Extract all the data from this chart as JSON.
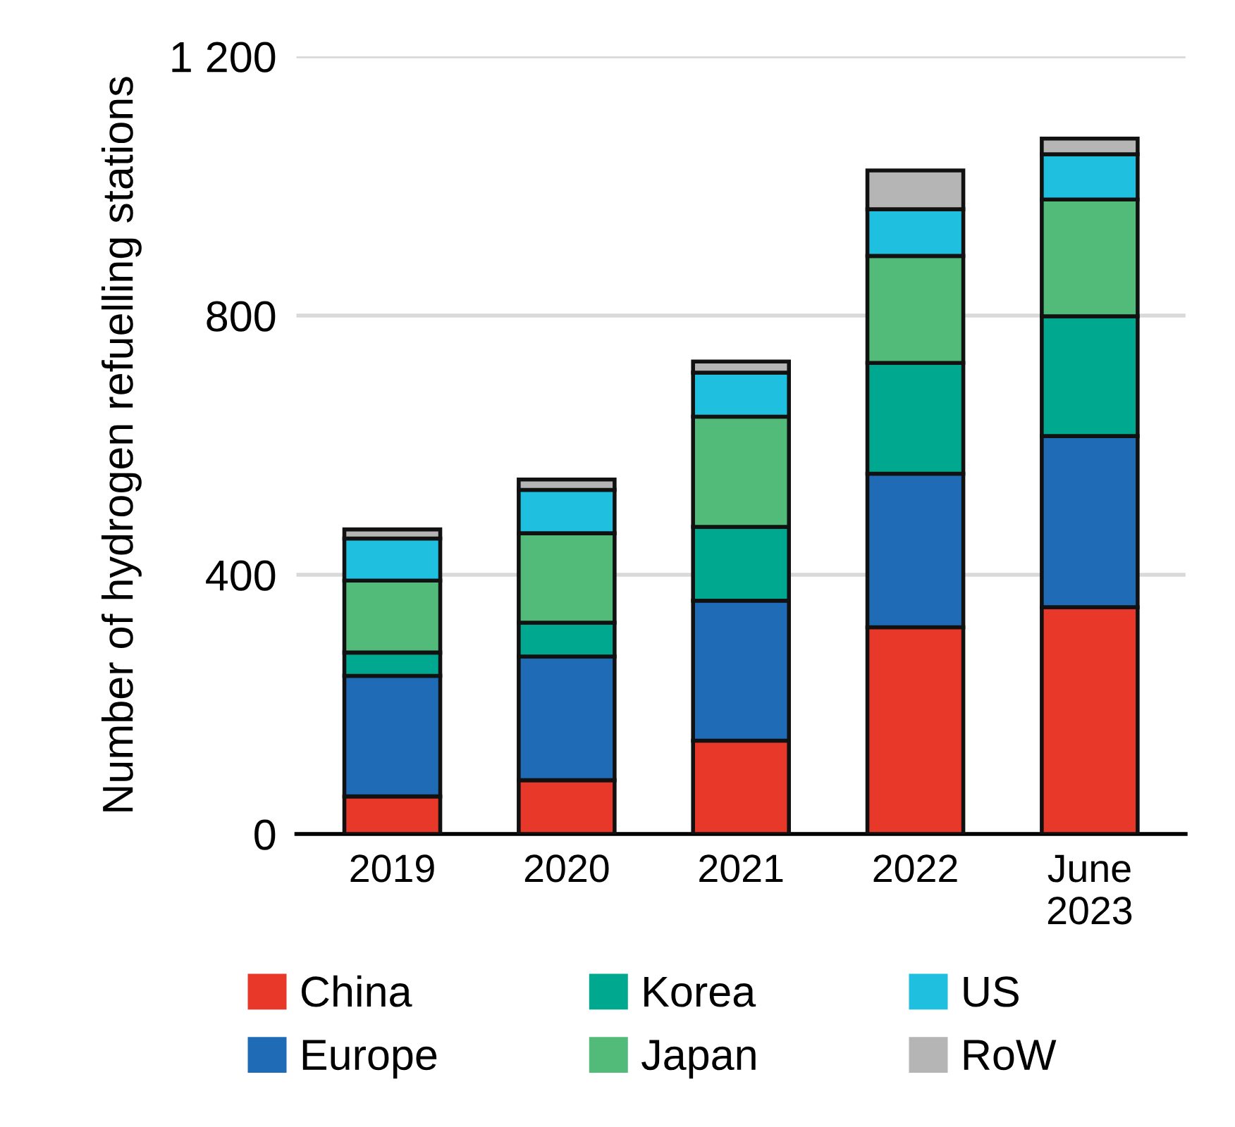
{
  "chart_data": {
    "type": "bar",
    "stacked": true,
    "ylabel": "Number of hydrogen refuelling stations",
    "categories": [
      "2019",
      "2020",
      "2021",
      "2022",
      "June\n2023"
    ],
    "series": [
      {
        "name": "China",
        "color": "#e8382a",
        "values": [
          58,
          83,
          144,
          319,
          350
        ]
      },
      {
        "name": "Europe",
        "color": "#1f6bb6",
        "values": [
          186,
          191,
          216,
          237,
          264
        ]
      },
      {
        "name": "Korea",
        "color": "#00a88f",
        "values": [
          36,
          52,
          114,
          171,
          185
        ]
      },
      {
        "name": "Japan",
        "color": "#52bb7a",
        "values": [
          111,
          138,
          170,
          165,
          180
        ]
      },
      {
        "name": "US",
        "color": "#1fbfe0",
        "values": [
          65,
          67,
          68,
          72,
          70
        ]
      },
      {
        "name": "RoW",
        "color": "#b5b5b5",
        "values": [
          14,
          16,
          17,
          60,
          24
        ]
      }
    ],
    "ylim": [
      0,
      1200
    ],
    "yticks": [
      0,
      400,
      800,
      {
        "value": 1200,
        "label": "1 200"
      }
    ],
    "grid": "y",
    "legend": "bottom"
  }
}
